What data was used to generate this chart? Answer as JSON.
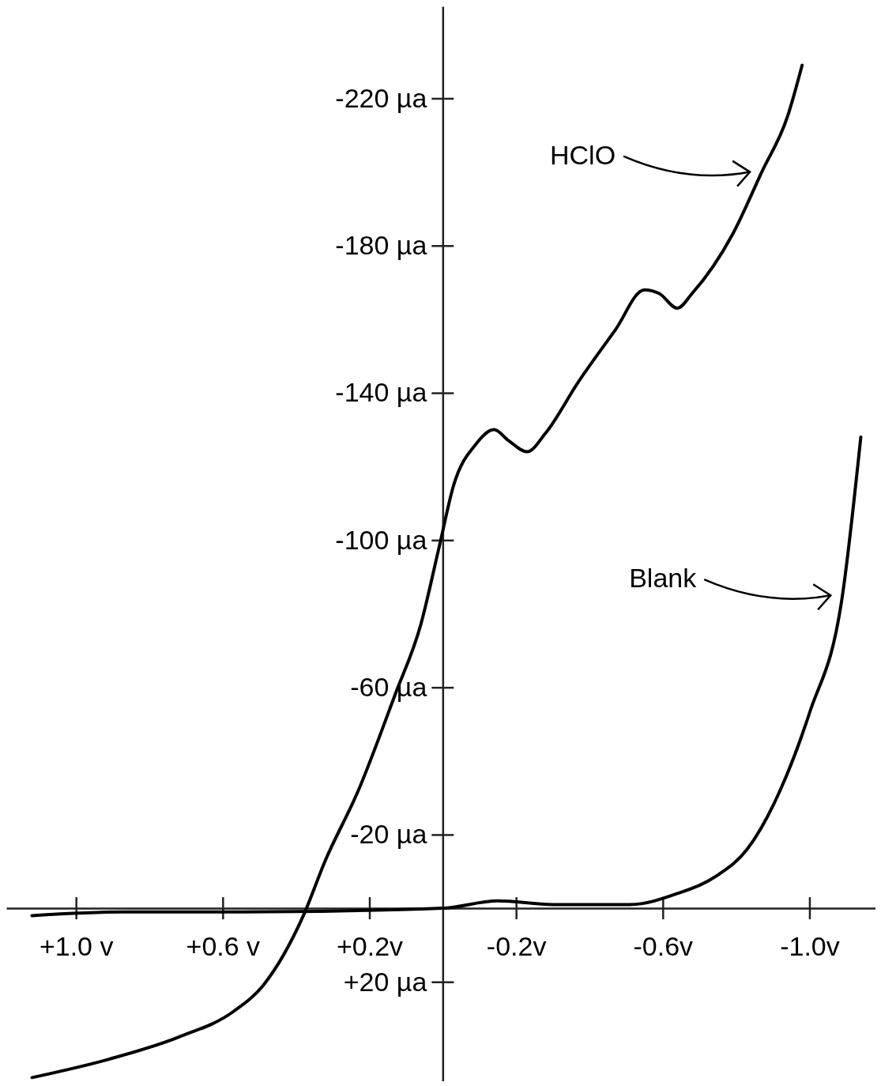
{
  "chart_data": {
    "type": "line",
    "xlim": [
      1.19,
      -1.18
    ],
    "ylim": [
      47,
      -245
    ],
    "xticks": [
      {
        "value": 1.0,
        "label": "+1.0 v"
      },
      {
        "value": 0.6,
        "label": "+0.6 v"
      },
      {
        "value": 0.2,
        "label": "+0.2v"
      },
      {
        "value": -0.2,
        "label": "-0.2v"
      },
      {
        "value": -0.6,
        "label": "-0.6v"
      },
      {
        "value": -1.0,
        "label": "-1.0v"
      }
    ],
    "yticks": [
      {
        "value": -220,
        "label": "-220 µa"
      },
      {
        "value": -180,
        "label": "-180 µa"
      },
      {
        "value": -140,
        "label": "-140 µa"
      },
      {
        "value": -100,
        "label": "-100 µa"
      },
      {
        "value": -60,
        "label": "-60 µa"
      },
      {
        "value": -20,
        "label": "-20 µa"
      },
      {
        "value": 20,
        "label": "+20 µa"
      }
    ],
    "grid": false,
    "legend": "right",
    "marker": "none",
    "line_style": "solid",
    "series": [
      {
        "name": "HClO",
        "color": "#000000",
        "x": [
          1.12,
          0.91,
          0.72,
          0.57,
          0.49,
          0.38,
          0.32,
          0.23,
          0.13,
          0.06,
          0.01,
          -0.03,
          -0.09,
          -0.14,
          -0.18,
          -0.23,
          -0.28,
          -0.37,
          -0.47,
          -0.55,
          -0.59,
          -0.64,
          -0.68,
          -0.79,
          -0.87,
          -0.94,
          -0.98
        ],
        "values": [
          46,
          41,
          35,
          28,
          21,
          2,
          -13,
          -32,
          -58,
          -77,
          -98,
          -115,
          -126,
          -130,
          -127,
          -124,
          -129,
          -143,
          -157,
          -168,
          -167,
          -163,
          -167,
          -183,
          -200,
          -215,
          -229
        ]
      },
      {
        "name": "Blank",
        "color": "#000000",
        "x": [
          1.12,
          0.87,
          0.55,
          0,
          -0.15,
          -0.3,
          -0.51,
          -0.64,
          -0.75,
          -0.83,
          -0.92,
          -1.0,
          -1.09,
          -1.14
        ],
        "values": [
          2,
          1,
          1,
          0,
          -2,
          -1,
          -1,
          -4,
          -9,
          -16,
          -32,
          -53,
          -85,
          -128
        ]
      }
    ]
  }
}
